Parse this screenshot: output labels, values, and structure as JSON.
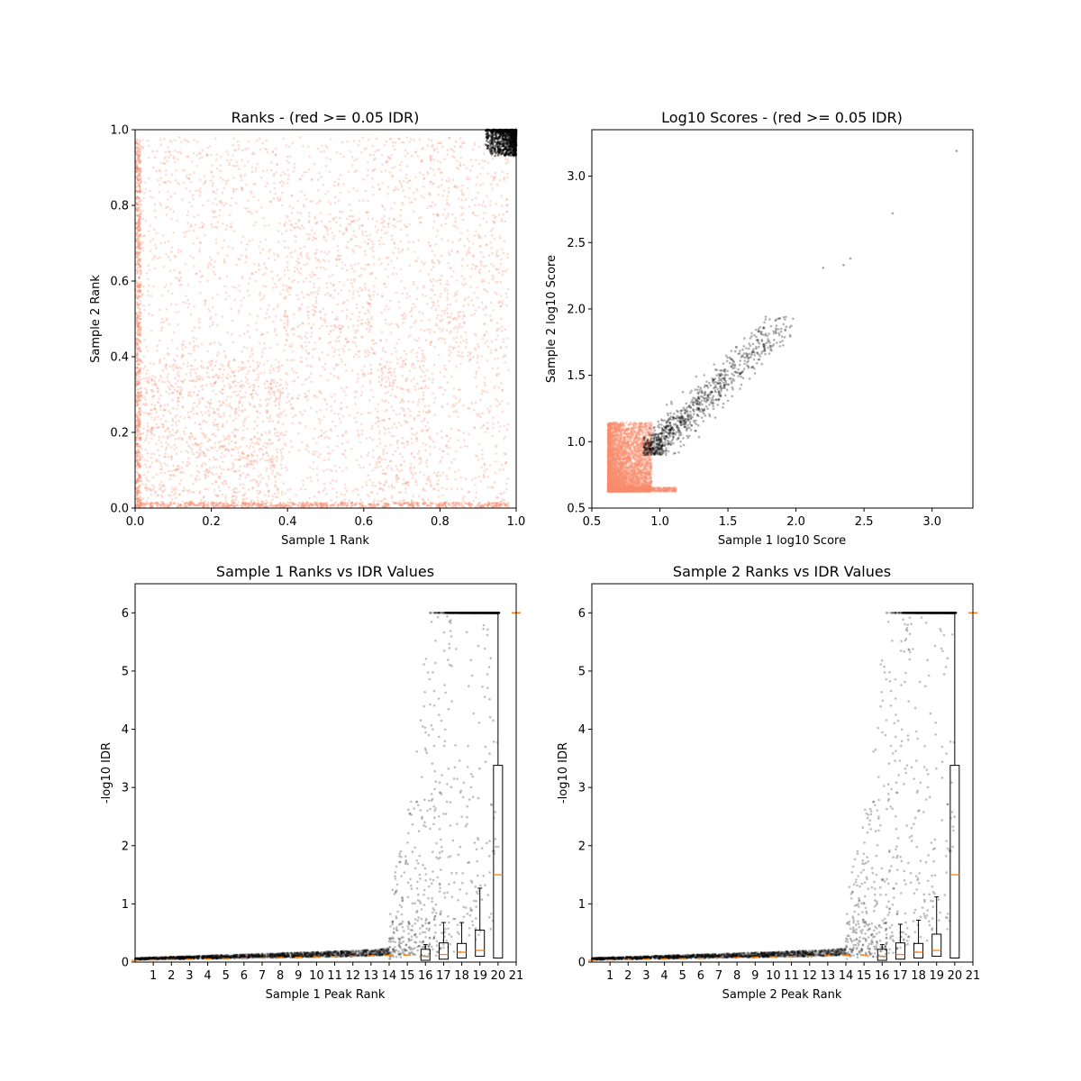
{
  "colors": {
    "red_points": "#fa8c6c",
    "black_points": "#000000",
    "median": "#ff7f0e",
    "box": "#000000"
  },
  "chart_data": [
    {
      "type": "scatter",
      "title": "Ranks - (red >= 0.05 IDR)",
      "xlabel": "Sample 1 Rank",
      "ylabel": "Sample 2 Rank",
      "xlim": [
        0,
        1.0
      ],
      "ylim": [
        0,
        1.0
      ],
      "xticks": [
        "0.0",
        "0.2",
        "0.4",
        "0.6",
        "0.8",
        "1.0"
      ],
      "yticks": [
        "0.0",
        "0.2",
        "0.4",
        "0.6",
        "0.8",
        "1.0"
      ],
      "series": [
        {
          "color": "red",
          "blocks": [
            {
              "x": [
                0.0,
                0.39
              ],
              "y": [
                0.0,
                0.39
              ],
              "density": 0.9
            },
            {
              "x": [
                0.39,
                0.63
              ],
              "y": [
                0.0,
                0.39
              ],
              "density": 0.35
            },
            {
              "x": [
                0.63,
                0.77
              ],
              "y": [
                0.0,
                0.39
              ],
              "density": 0.7
            },
            {
              "x": [
                0.77,
                0.98
              ],
              "y": [
                0.0,
                0.39
              ],
              "density": 0.35
            },
            {
              "x": [
                0.0,
                0.39
              ],
              "y": [
                0.39,
                0.77
              ],
              "density": 0.3
            },
            {
              "x": [
                0.39,
                0.63
              ],
              "y": [
                0.39,
                0.77
              ],
              "density": 0.6
            },
            {
              "x": [
                0.63,
                0.77
              ],
              "y": [
                0.39,
                0.77
              ],
              "density": 0.35
            },
            {
              "x": [
                0.77,
                0.98
              ],
              "y": [
                0.39,
                0.77
              ],
              "density": 0.5
            },
            {
              "x": [
                0.0,
                0.39
              ],
              "y": [
                0.77,
                0.98
              ],
              "density": 0.4
            },
            {
              "x": [
                0.39,
                0.63
              ],
              "y": [
                0.77,
                0.98
              ],
              "density": 0.3
            },
            {
              "x": [
                0.63,
                0.77
              ],
              "y": [
                0.77,
                0.98
              ],
              "density": 0.4
            },
            {
              "x": [
                0.77,
                0.98
              ],
              "y": [
                0.77,
                0.98
              ],
              "density": 0.5
            }
          ]
        },
        {
          "color": "black",
          "region": {
            "x": [
              0.92,
              1.0
            ],
            "y": [
              0.93,
              1.0
            ]
          }
        }
      ]
    },
    {
      "type": "scatter",
      "title": "Log10 Scores - (red >= 0.05 IDR)",
      "xlabel": "Sample 1 log10 Score",
      "ylabel": "Sample 2 log10 Score",
      "xlim": [
        0.5,
        3.3
      ],
      "ylim": [
        0.5,
        3.35
      ],
      "xticks": [
        0.5,
        1.0,
        1.5,
        2.0,
        2.5,
        3.0
      ],
      "yticks": [
        0.5,
        1.0,
        1.5,
        2.0,
        2.5,
        3.0
      ],
      "series": [
        {
          "color": "red",
          "region": {
            "x": [
              0.62,
              1.13
            ],
            "y": [
              0.62,
              1.17
            ]
          }
        },
        {
          "color": "black",
          "trend": "y≈x",
          "range": [
            0.88,
            2.4
          ]
        },
        {
          "color": "black",
          "points": [
            [
              2.71,
              2.72
            ],
            [
              3.18,
              3.19
            ],
            [
              2.4,
              2.38
            ],
            [
              2.35,
              2.33
            ],
            [
              2.2,
              2.31
            ]
          ]
        }
      ]
    },
    {
      "type": "box",
      "title": "Sample 1 Ranks vs IDR Values",
      "xlabel": "Sample 1 Peak Rank",
      "ylabel": "-log10 IDR",
      "ylim": [
        0,
        6.5
      ],
      "xticks": [
        "1",
        "2",
        "3",
        "4",
        "5",
        "6",
        "7",
        "8",
        "9",
        "10",
        "11",
        "12",
        "13",
        "14",
        "15",
        "16",
        "17",
        "18",
        "19",
        "20",
        "21"
      ],
      "yticks": [
        0,
        1,
        2,
        3,
        4,
        5,
        6
      ],
      "boxes": [
        {
          "bin": 16,
          "q1": 0.03,
          "median": 0.1,
          "q3": 0.22,
          "whisker_high": 0.3
        },
        {
          "bin": 17,
          "q1": 0.05,
          "median": 0.13,
          "q3": 0.33,
          "whisker_high": 0.68
        },
        {
          "bin": 18,
          "q1": 0.07,
          "median": 0.17,
          "q3": 0.32,
          "whisker_high": 0.68
        },
        {
          "bin": 19,
          "q1": 0.1,
          "median": 0.2,
          "q3": 0.55,
          "whisker_high": 1.27
        },
        {
          "bin": 20,
          "q1": 0.07,
          "median": 1.5,
          "q3": 3.38,
          "whisker_high": 6.0
        }
      ]
    },
    {
      "type": "box",
      "title": "Sample 2 Ranks vs IDR Values",
      "xlabel": "Sample 2 Peak Rank",
      "ylabel": "-log10 IDR",
      "ylim": [
        0,
        6.5
      ],
      "xticks": [
        "1",
        "2",
        "3",
        "4",
        "5",
        "6",
        "7",
        "8",
        "9",
        "10",
        "11",
        "12",
        "13",
        "14",
        "15",
        "16",
        "17",
        "18",
        "19",
        "20",
        "21"
      ],
      "yticks": [
        0,
        1,
        2,
        3,
        4,
        5,
        6
      ],
      "boxes": [
        {
          "bin": 16,
          "q1": 0.03,
          "median": 0.1,
          "q3": 0.22,
          "whisker_high": 0.3
        },
        {
          "bin": 17,
          "q1": 0.05,
          "median": 0.13,
          "q3": 0.33,
          "whisker_high": 0.65
        },
        {
          "bin": 18,
          "q1": 0.07,
          "median": 0.17,
          "q3": 0.32,
          "whisker_high": 0.72
        },
        {
          "bin": 19,
          "q1": 0.1,
          "median": 0.2,
          "q3": 0.48,
          "whisker_high": 1.12
        },
        {
          "bin": 20,
          "q1": 0.07,
          "median": 1.5,
          "q3": 3.38,
          "whisker_high": 6.0
        }
      ]
    }
  ]
}
